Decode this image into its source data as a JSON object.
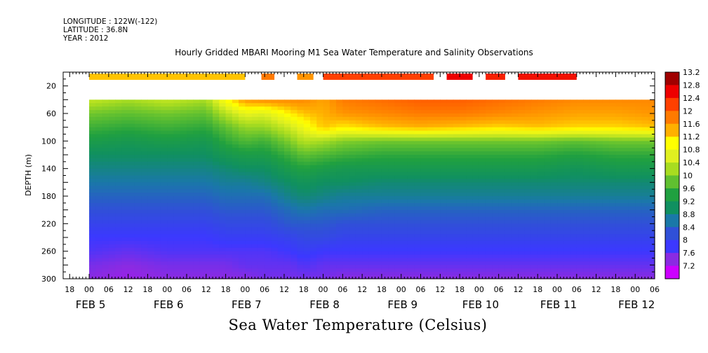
{
  "header": {
    "longitude": "LONGITUDE : 122W(-122)",
    "latitude": "LATITUDE : 36.8N",
    "year": "YEAR : 2012"
  },
  "chart_data": {
    "type": "heatmap",
    "title": "Hourly Gridded MBARI Mooring M1 Sea Water Temperature and Salinity Observations",
    "subtitle": "Sea Water Temperature (Celsius)",
    "ylabel": "DEPTH (m)",
    "xlabel": "",
    "y_reversed": true,
    "ylim": [
      300,
      0
    ],
    "y_ticks": [
      "20",
      "60",
      "100",
      "140",
      "180",
      "220",
      "260",
      "300"
    ],
    "y_tick_values": [
      20,
      60,
      100,
      140,
      180,
      220,
      260,
      300
    ],
    "x_hour_labels": [
      "18",
      "00",
      "06",
      "12",
      "18",
      "00",
      "06",
      "12",
      "18",
      "00",
      "06",
      "12",
      "18",
      "00",
      "06",
      "12",
      "18",
      "00",
      "06",
      "12",
      "18",
      "00",
      "06",
      "12",
      "18",
      "00",
      "06",
      "12",
      "18",
      "00",
      "06"
    ],
    "x_day_labels": [
      "FEB  5",
      "FEB  6",
      "FEB  7",
      "FEB  8",
      "FEB  9",
      "FEB 10",
      "FEB 11",
      "FEB 12"
    ],
    "x_range_hours": [
      -8,
      174
    ],
    "colorbar_labels": [
      "13.2",
      "12.8",
      "12.4",
      "12",
      "11.6",
      "11.2",
      "10.8",
      "10.4",
      "10",
      "9.6",
      "9.2",
      "8.8",
      "8.4",
      "8",
      "7.6",
      "7.2"
    ],
    "colorbar_range": [
      7.2,
      13.2
    ],
    "surface_strip_segments": [
      {
        "start_hour": 0,
        "end_hour": 48,
        "value": 11.5
      },
      {
        "start_hour": 53,
        "end_hour": 57,
        "value": 12.0
      },
      {
        "start_hour": 64,
        "end_hour": 69,
        "value": 11.8
      },
      {
        "start_hour": 72,
        "end_hour": 106,
        "value": 12.4
      },
      {
        "start_hour": 110,
        "end_hour": 118,
        "value": 12.8
      },
      {
        "start_hour": 122,
        "end_hour": 128,
        "value": 12.6
      },
      {
        "start_hour": 132,
        "end_hour": 150,
        "value": 12.7
      }
    ],
    "temperature_profile_depths_m": [
      40,
      60,
      80,
      100,
      120,
      140,
      160,
      180,
      200,
      220,
      240,
      260,
      280,
      300
    ],
    "temperature_profiles": [
      {
        "hour": 0,
        "temps": [
          10.6,
          10.1,
          9.8,
          9.5,
          9.2,
          9.0,
          8.8,
          8.6,
          8.4,
          8.2,
          8.0,
          7.9,
          7.7,
          7.6
        ]
      },
      {
        "hour": 12,
        "temps": [
          10.4,
          10.0,
          9.7,
          9.4,
          9.2,
          9.0,
          8.8,
          8.6,
          8.4,
          8.2,
          8.0,
          7.8,
          7.6,
          7.5
        ]
      },
      {
        "hour": 24,
        "temps": [
          10.6,
          10.1,
          9.8,
          9.5,
          9.2,
          9.0,
          8.8,
          8.6,
          8.4,
          8.2,
          8.0,
          7.9,
          7.7,
          7.6
        ]
      },
      {
        "hour": 36,
        "temps": [
          10.4,
          10.0,
          9.7,
          9.4,
          9.2,
          9.0,
          8.8,
          8.6,
          8.4,
          8.2,
          8.0,
          7.9,
          7.7,
          7.6
        ]
      },
      {
        "hour": 42,
        "temps": [
          11.2,
          10.5,
          10.0,
          9.7,
          9.4,
          9.1,
          8.9,
          8.7,
          8.5,
          8.3,
          8.1,
          7.9,
          7.7,
          7.6
        ]
      },
      {
        "hour": 48,
        "temps": [
          11.8,
          10.9,
          10.3,
          9.9,
          9.5,
          9.2,
          8.9,
          8.7,
          8.5,
          8.3,
          8.1,
          7.9,
          7.8,
          7.6
        ]
      },
      {
        "hour": 54,
        "temps": [
          11.9,
          10.8,
          10.3,
          9.8,
          9.5,
          9.2,
          9.0,
          8.7,
          8.5,
          8.3,
          8.1,
          7.9,
          7.8,
          7.7
        ]
      },
      {
        "hour": 62,
        "temps": [
          11.9,
          11.3,
          10.7,
          10.2,
          9.8,
          9.5,
          9.2,
          9.0,
          8.7,
          8.5,
          8.2,
          8.0,
          7.8,
          7.7
        ]
      },
      {
        "hour": 66,
        "temps": [
          11.9,
          11.5,
          11.0,
          10.5,
          10.0,
          9.6,
          9.3,
          9.1,
          8.8,
          8.5,
          8.3,
          8.1,
          7.9,
          7.7
        ]
      },
      {
        "hour": 72,
        "temps": [
          11.7,
          11.6,
          11.5,
          10.4,
          9.9,
          9.5,
          9.2,
          9.0,
          8.7,
          8.5,
          8.3,
          8.0,
          7.8,
          7.7
        ]
      },
      {
        "hour": 78,
        "temps": [
          12.0,
          11.8,
          11.3,
          10.2,
          9.8,
          9.4,
          9.2,
          8.9,
          8.7,
          8.4,
          8.2,
          8.0,
          7.8,
          7.6
        ]
      },
      {
        "hour": 90,
        "temps": [
          12.1,
          11.9,
          11.5,
          10.1,
          9.7,
          9.4,
          9.1,
          8.9,
          8.6,
          8.4,
          8.2,
          8.0,
          7.8,
          7.6
        ]
      },
      {
        "hour": 102,
        "temps": [
          12.2,
          12.0,
          11.6,
          10.1,
          9.7,
          9.4,
          9.1,
          8.9,
          8.6,
          8.4,
          8.2,
          8.0,
          7.8,
          7.6
        ]
      },
      {
        "hour": 114,
        "temps": [
          12.2,
          12.0,
          11.5,
          10.1,
          9.7,
          9.4,
          9.1,
          8.9,
          8.6,
          8.4,
          8.2,
          8.0,
          7.8,
          7.6
        ]
      },
      {
        "hour": 126,
        "temps": [
          12.1,
          11.9,
          11.4,
          10.1,
          9.7,
          9.4,
          9.1,
          8.9,
          8.6,
          8.4,
          8.2,
          8.0,
          7.8,
          7.6
        ]
      },
      {
        "hour": 138,
        "temps": [
          12.0,
          11.8,
          11.5,
          10.1,
          9.7,
          9.4,
          9.1,
          8.9,
          8.6,
          8.4,
          8.2,
          8.0,
          7.8,
          7.6
        ]
      },
      {
        "hour": 150,
        "temps": [
          11.9,
          11.7,
          11.4,
          10.0,
          9.6,
          9.3,
          9.1,
          8.9,
          8.6,
          8.4,
          8.2,
          8.0,
          7.8,
          7.6
        ]
      },
      {
        "hour": 162,
        "temps": [
          11.9,
          11.7,
          11.4,
          10.1,
          9.7,
          9.4,
          9.1,
          8.9,
          8.6,
          8.4,
          8.2,
          8.0,
          7.8,
          7.6
        ]
      },
      {
        "hour": 174,
        "temps": [
          11.9,
          11.8,
          11.5,
          10.1,
          9.7,
          9.4,
          9.1,
          8.9,
          8.6,
          8.4,
          8.2,
          8.0,
          7.8,
          7.6
        ]
      }
    ],
    "grid": false,
    "legend": "colorbar-right"
  }
}
